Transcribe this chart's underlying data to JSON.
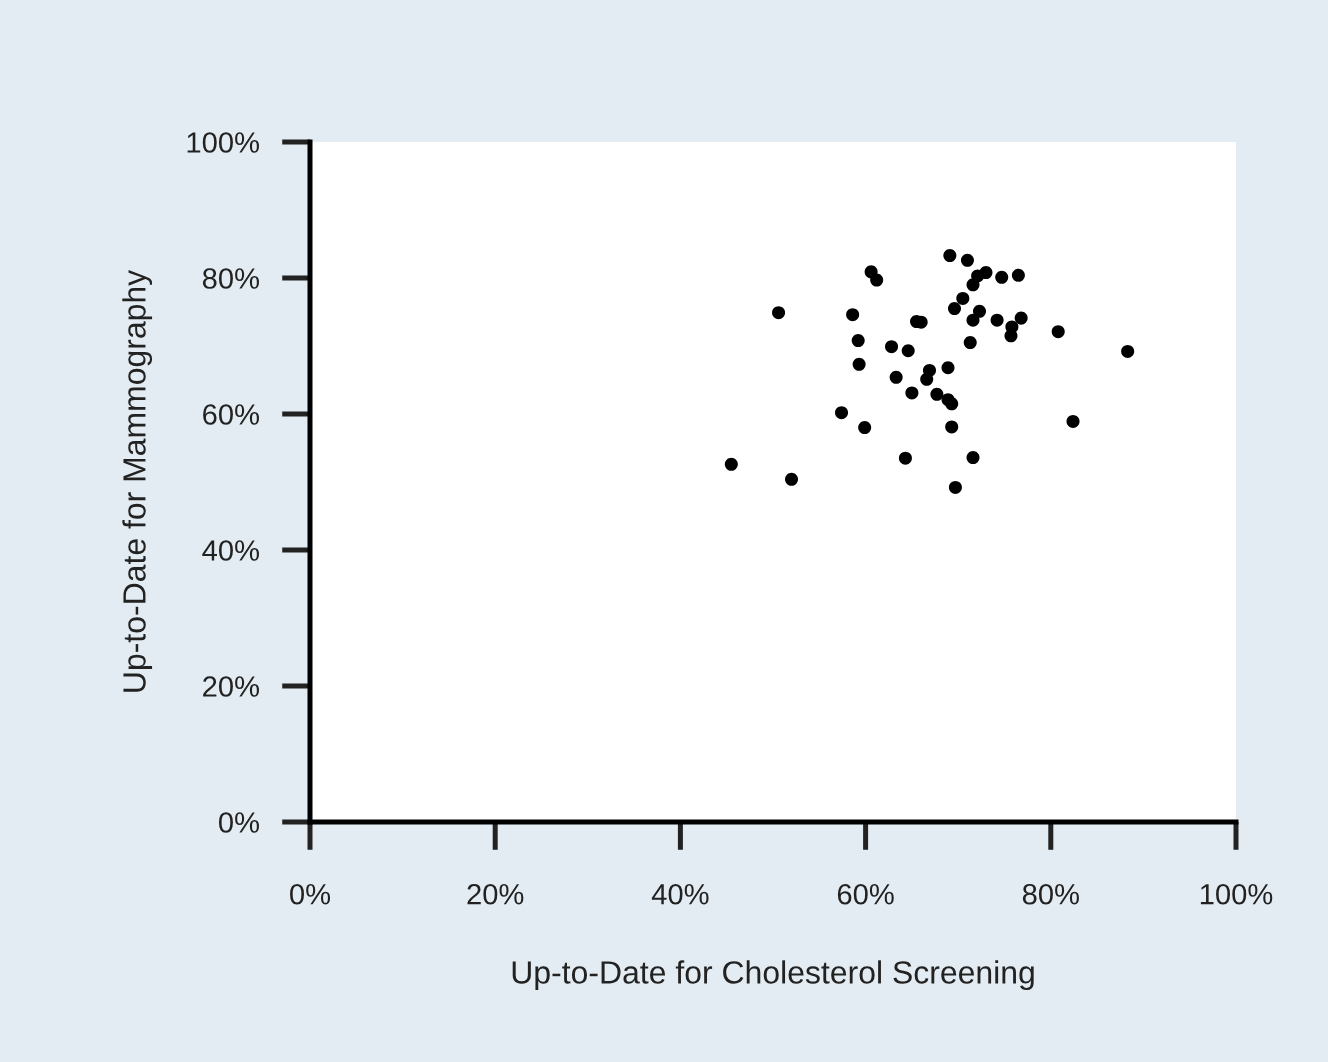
{
  "chart_data": {
    "type": "scatter",
    "xlabel": "Up-to-Date for Cholesterol Screening",
    "ylabel": "Up-to-Date for Mammography",
    "x": [
      69.1,
      71.0,
      60.6,
      61.2,
      73.0,
      72.1,
      74.7,
      76.5,
      71.6,
      70.5,
      69.6,
      72.3,
      71.6,
      74.2,
      75.8,
      76.8,
      75.7,
      80.8,
      71.3,
      88.3,
      50.6,
      58.6,
      65.5,
      66.0,
      59.2,
      62.8,
      64.6,
      59.3,
      63.3,
      66.9,
      66.6,
      68.9,
      65.0,
      67.7,
      68.9,
      69.3,
      57.4,
      59.9,
      69.3,
      82.4,
      45.5,
      52.0,
      64.3,
      71.6,
      69.7
    ],
    "values": [
      83.3,
      82.6,
      80.9,
      79.7,
      80.8,
      80.3,
      80.1,
      80.4,
      79.0,
      77.0,
      75.5,
      75.1,
      73.8,
      73.8,
      72.8,
      74.1,
      71.5,
      72.1,
      70.5,
      69.2,
      74.9,
      74.6,
      73.6,
      73.5,
      70.8,
      69.9,
      69.3,
      67.3,
      65.4,
      66.4,
      65.1,
      66.8,
      63.1,
      62.9,
      62.1,
      61.5,
      60.2,
      58.0,
      58.1,
      58.9,
      52.6,
      50.4,
      53.5,
      53.6,
      49.2
    ],
    "color": "#000000",
    "marker": "circle",
    "xlim": [
      0,
      100
    ],
    "ylim": [
      0,
      100
    ],
    "xticks": [
      {
        "value": 0,
        "label": "0%"
      },
      {
        "value": 20,
        "label": "20%"
      },
      {
        "value": 40,
        "label": "40%"
      },
      {
        "value": 60,
        "label": "60%"
      },
      {
        "value": 80,
        "label": "80%"
      },
      {
        "value": 100,
        "label": "100%"
      }
    ],
    "yticks": [
      {
        "value": 0,
        "label": "0%"
      },
      {
        "value": 20,
        "label": "20%"
      },
      {
        "value": 40,
        "label": "40%"
      },
      {
        "value": 60,
        "label": "60%"
      },
      {
        "value": 80,
        "label": "80%"
      },
      {
        "value": 100,
        "label": "100%"
      }
    ],
    "grid": false
  }
}
